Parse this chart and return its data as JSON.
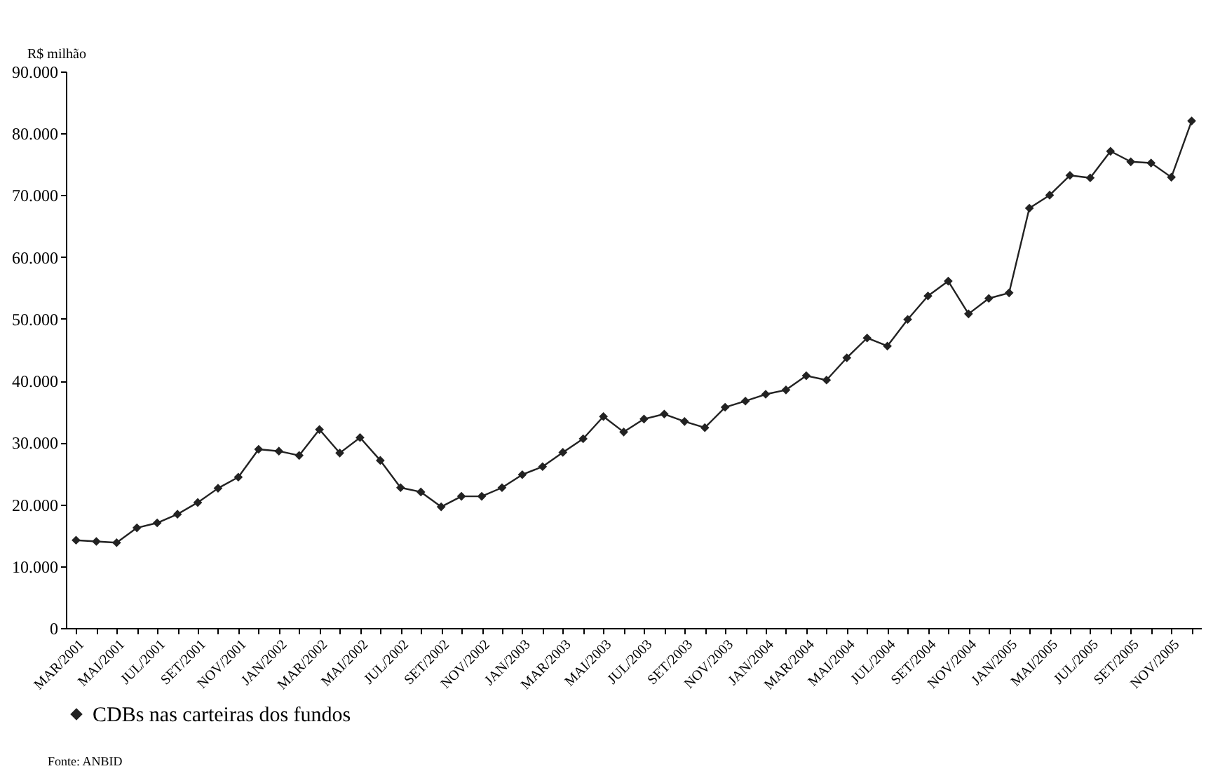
{
  "chart_data": {
    "type": "line",
    "ylabel": "R$ milhão",
    "categories": [
      "MAR/2001",
      null,
      "MAI/2001",
      null,
      "JUL/2001",
      null,
      "SET/2001",
      null,
      "NOV/2001",
      null,
      "JAN/2002",
      null,
      "MAR/2002",
      null,
      "MAI/2002",
      null,
      "JUL/2002",
      null,
      "SET/2002",
      null,
      "NOV/2002",
      null,
      "JAN/2003",
      null,
      "MAR/2003",
      null,
      "MAI/2003",
      null,
      "JUL/2003",
      null,
      "SET/2003",
      null,
      "NOV/2003",
      null,
      "JAN/2004",
      null,
      "MAR/2004",
      null,
      "MAI/2004",
      null,
      "JUL/2004",
      null,
      "SET/2004",
      null,
      "NOV/2004",
      null,
      "JAN/2005",
      null,
      "MAI/2005",
      null,
      "JUL/2005",
      null,
      "SET/2005",
      null,
      "NOV/2005",
      null
    ],
    "series": [
      {
        "name": "CDBs nas carteiras dos fundos",
        "color": "#222222",
        "values": [
          14200,
          14000,
          13800,
          16200,
          17000,
          18400,
          20300,
          22600,
          24400,
          28900,
          28600,
          27900,
          32100,
          28300,
          30800,
          27100,
          22700,
          22000,
          19600,
          21300,
          21300,
          22700,
          24800,
          26100,
          28400,
          30600,
          34200,
          31700,
          33800,
          34600,
          33400,
          32400,
          35700,
          36700,
          37800,
          38500,
          40800,
          40100,
          43700,
          46900,
          45600,
          49900,
          53700,
          56100,
          50800,
          53300,
          54200,
          67900,
          70000,
          73200,
          72800,
          77100,
          75400,
          75200,
          72900,
          82000
        ]
      }
    ],
    "ylim": [
      0,
      90000
    ],
    "yticks": [
      {
        "value": 0,
        "label": "0"
      },
      {
        "value": 10000,
        "label": "10.000"
      },
      {
        "value": 20000,
        "label": "20.000"
      },
      {
        "value": 30000,
        "label": "30.000"
      },
      {
        "value": 40000,
        "label": "40.000"
      },
      {
        "value": 50000,
        "label": "50.000"
      },
      {
        "value": 60000,
        "label": "60.000"
      },
      {
        "value": 70000,
        "label": "70.000"
      },
      {
        "value": 80000,
        "label": "80.000"
      },
      {
        "value": 90000,
        "label": "90.000"
      }
    ],
    "grid": false,
    "legend": "bottom",
    "marker": "diamond",
    "line_style": "solid",
    "annotations": [
      "Fonte: ANBID"
    ]
  }
}
